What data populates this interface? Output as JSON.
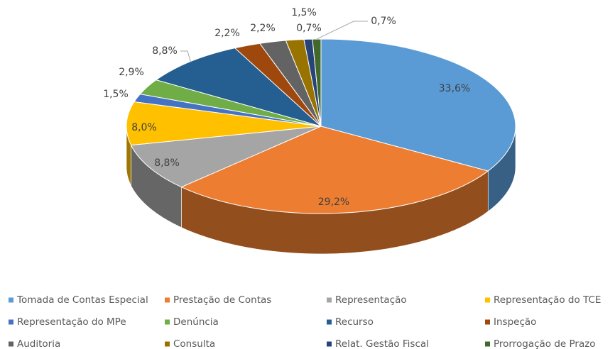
{
  "chart_data": {
    "type": "pie3d",
    "categories": [
      "Tomada de Contas Especial",
      "Prestação de Contas",
      "Representação",
      "Representação do TCE",
      "Representação do MPe",
      "Denúncia",
      "Recurso",
      "Inspeção",
      "Auditoria",
      "Consulta",
      "Relat. Gestão Fiscal",
      "Prorrogação de Prazo"
    ],
    "values": [
      33.6,
      29.2,
      8.8,
      8.0,
      1.5,
      2.9,
      8.8,
      2.2,
      2.2,
      1.5,
      0.7,
      0.7
    ],
    "value_labels": [
      "33,6%",
      "29,2%",
      "8,8%",
      "8,0%",
      "1,5%",
      "2,9%",
      "8,8%",
      "2,2%",
      "2,2%",
      "1,5%",
      "0,7%",
      "0,7%"
    ],
    "colors": [
      "#5B9BD5",
      "#ED7D31",
      "#A5A5A5",
      "#FFC000",
      "#4472C4",
      "#70AD47",
      "#255E91",
      "#9E480E",
      "#636363",
      "#997300",
      "#264478",
      "#43682B"
    ],
    "legend": "bottom"
  }
}
